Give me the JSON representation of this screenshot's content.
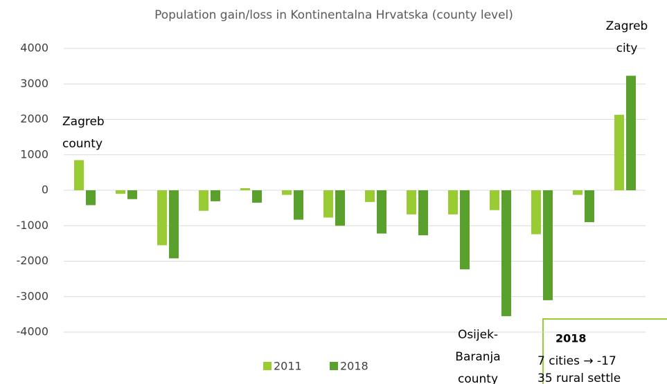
{
  "chart_data": {
    "type": "bar",
    "title": "Population gain/loss in Kontinentalna Hrvatska (county level)",
    "categories": [
      null,
      null,
      null,
      null,
      null,
      null,
      null,
      null,
      null,
      null,
      null,
      null,
      null,
      null
    ],
    "series": [
      {
        "name": "2011",
        "color": "#99cc33",
        "values": [
          850,
          -100,
          -1550,
          -580,
          60,
          -130,
          -770,
          -330,
          -680,
          -680,
          -560,
          -1240,
          -130,
          2130
        ]
      },
      {
        "name": "2018",
        "color": "#5aa02c",
        "values": [
          -420,
          -250,
          -1920,
          -310,
          -350,
          -830,
          -1000,
          -1220,
          -1270,
          -2230,
          -3550,
          -3100,
          -900,
          3230
        ]
      }
    ],
    "ylim": [
      -4000,
      4000
    ],
    "yticks": [
      -4000,
      -3000,
      -2000,
      -1000,
      0,
      1000,
      2000,
      3000,
      4000
    ],
    "grid": true,
    "legend": "bottom",
    "annotations": [
      {
        "lines": [
          "Zagreb",
          "county"
        ]
      },
      {
        "lines": [
          "Zagreb",
          "city"
        ]
      },
      {
        "lines": [
          "Osijek-",
          "Baranja",
          "county"
        ]
      }
    ],
    "note_box": {
      "heading": "2018",
      "lines": [
        "7 cities → -17",
        "35 rural settle"
      ]
    }
  }
}
